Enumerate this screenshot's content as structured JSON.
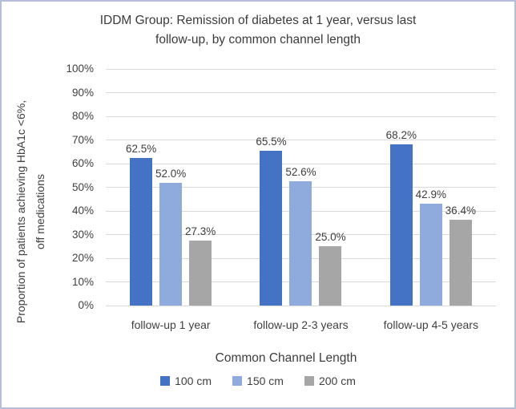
{
  "chart_data": {
    "type": "bar",
    "title": "IDDM Group: Remission of diabetes at 1 year, versus last follow-up, by common channel length",
    "title_lines": [
      "IDDM Group: Remission of diabetes at 1 year, versus last",
      "follow-up, by common channel length"
    ],
    "ylabel": "Proportion of patients achieving HbA1c <6%, off medications",
    "ylabel_lines": [
      "Proportion of patients achieving HbA1c <6%,",
      "off medications"
    ],
    "xlabel": "Common Channel Length",
    "categories": [
      "follow-up 1 year",
      "follow-up 2-3 years",
      "follow-up 4-5 years"
    ],
    "series": [
      {
        "name": "100 cm",
        "color": "#4472C4",
        "values": [
          62.5,
          65.5,
          68.2
        ],
        "labels": [
          "62.5%",
          "65.5%",
          "68.2%"
        ]
      },
      {
        "name": "150 cm",
        "color": "#8FAADC",
        "values": [
          52.0,
          52.6,
          42.9
        ],
        "labels": [
          "52.0%",
          "52.6%",
          "42.9%"
        ]
      },
      {
        "name": "200 cm",
        "color": "#A6A6A6",
        "values": [
          27.3,
          25.0,
          36.4
        ],
        "labels": [
          "27.3%",
          "25.0%",
          "36.4%"
        ]
      }
    ],
    "ylim": [
      0,
      100
    ],
    "yticks": [
      "0%",
      "10%",
      "20%",
      "30%",
      "40%",
      "50%",
      "60%",
      "70%",
      "80%",
      "90%",
      "100%"
    ],
    "grid": true,
    "legend_position": "bottom",
    "colors": {
      "grid": "#D9D9D9",
      "text": "#404040",
      "frame_border": "#B5BFDA"
    }
  }
}
